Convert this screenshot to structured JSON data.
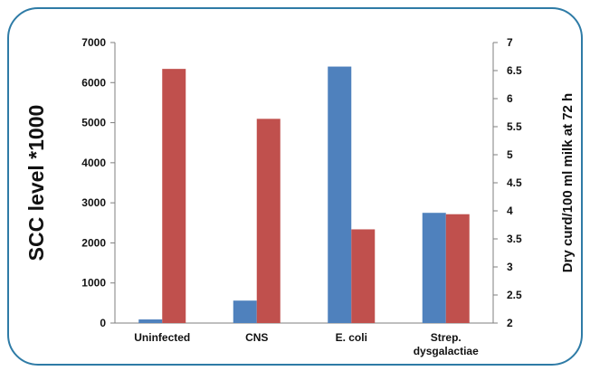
{
  "chart_data": {
    "type": "bar",
    "categories": [
      "Uninfected",
      "CNS",
      "E. coli",
      "Strep. dysgalactiae"
    ],
    "category_lines": [
      [
        "Uninfected"
      ],
      [
        "CNS"
      ],
      [
        "E. coli"
      ],
      [
        "Strep.",
        "dysgalactiae"
      ]
    ],
    "series": [
      {
        "axis": "left",
        "color": "#4f81bd",
        "values": [
          90,
          560,
          6400,
          2750
        ]
      },
      {
        "axis": "right",
        "color": "#c0504d",
        "values": [
          6.53,
          5.64,
          3.67,
          3.94
        ]
      }
    ],
    "ylabel": "SCC level *1000",
    "ylabel_right": "Dry curd/100 ml milk at 72 h",
    "ylim": [
      0,
      7000
    ],
    "ylim_right": [
      2,
      7
    ],
    "yticks": [
      "0",
      "1000",
      "2000",
      "3000",
      "4000",
      "5000",
      "6000",
      "7000"
    ],
    "yticks_right": [
      "2",
      "2.5",
      "3",
      "3.5",
      "4",
      "4.5",
      "5",
      "5.5",
      "6",
      "6.5",
      "7"
    ],
    "grid": false,
    "legend": "none",
    "frame_color": "#2e7ba6"
  }
}
